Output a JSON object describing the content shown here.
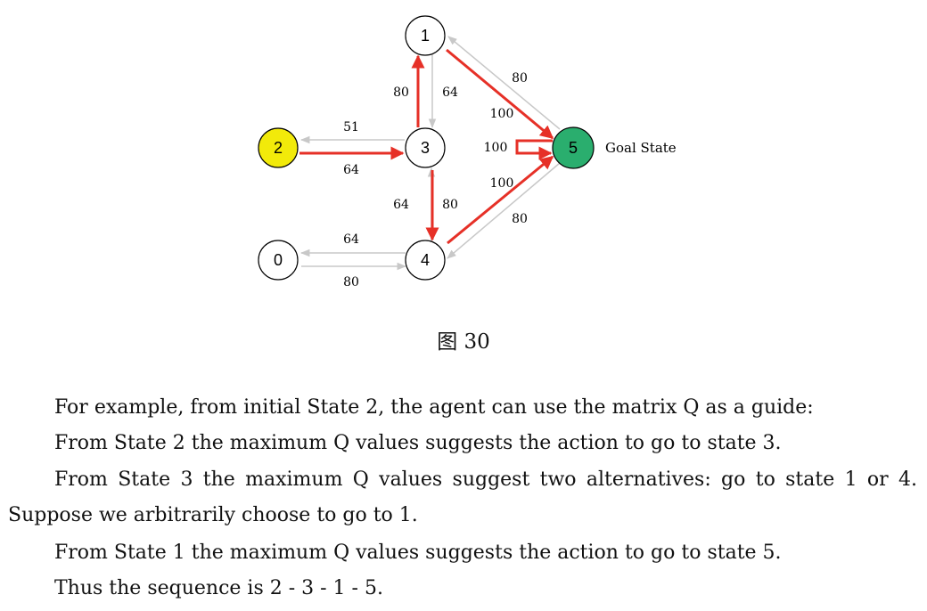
{
  "figure": {
    "nodes": [
      {
        "id": "0",
        "label": "0",
        "color": "#ffffff"
      },
      {
        "id": "1",
        "label": "1",
        "color": "#ffffff"
      },
      {
        "id": "2",
        "label": "2",
        "color": "#f2ea0a"
      },
      {
        "id": "3",
        "label": "3",
        "color": "#ffffff"
      },
      {
        "id": "4",
        "label": "4",
        "color": "#ffffff"
      },
      {
        "id": "5",
        "label": "5",
        "color": "#2aae6e"
      }
    ],
    "goal_label": "Goal State",
    "edge_labels": {
      "e_2_3": "64",
      "e_3_2": "51",
      "e_3_1": "80",
      "e_1_3": "64",
      "e_3_4": "80",
      "e_4_3": "64",
      "e_4_0": "64",
      "e_0_4": "80",
      "e_1_5": "100",
      "e_5_1": "80",
      "e_4_5": "100",
      "e_5_4": "80",
      "e_5_5": "100"
    },
    "colors": {
      "highlight": "#e63027",
      "gray": "#c8c8c8"
    }
  },
  "caption": "图 30",
  "paragraphs": {
    "p1": "For example, from initial State 2, the agent can use the matrix Q as a guide:",
    "p2": "From State 2 the maximum Q values suggests the action to go to state 3.",
    "p3a": "From State 3 the maximum Q values suggest two alternatives:  go to state 1 or 4.",
    "p3b": "Suppose we arbitrarily choose to go to 1.",
    "p4": "From State 1 the maximum Q values suggests the action to go to state 5.",
    "p5": "Thus the sequence is 2 - 3 - 1 - 5."
  }
}
